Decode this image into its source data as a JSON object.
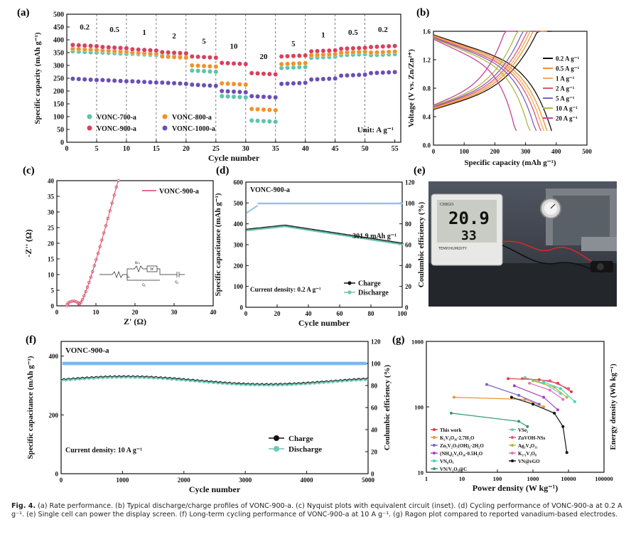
{
  "panels": {
    "a": "(a)",
    "b": "(b)",
    "c": "(c)",
    "d": "(d)",
    "e": "(e)",
    "f": "(f)",
    "g": "(g)"
  },
  "caption": {
    "fig": "Fig. 4.",
    "text": "(a) Rate performance. (b) Typical discharge/charge profiles of VONC-900-a. (c) Nyquist plots with equivalent circuit (inset). (d) Cycling performance of VONC-900-a at 0.2 A g⁻¹. (e) Single cell can power the display screen. (f) Long-term cycling performance of VONC-900-a at 10 A g⁻¹. (g) Ragon plot compared to reported vanadium-based electrodes."
  },
  "photo": {
    "brand": "CHIGO",
    "temp": "20.9",
    "hum": "33",
    "label": "TEMP/HUMIDITY"
  },
  "chart_data": [
    {
      "id": "a",
      "type": "scatter",
      "title": "",
      "xlabel": "Cycle number",
      "ylabel": "Specific capacity (mAh g⁻¹)",
      "xlim": [
        0,
        56
      ],
      "ylim": [
        0,
        500
      ],
      "xticks": [
        0,
        5,
        10,
        15,
        20,
        25,
        30,
        35,
        40,
        45,
        50,
        55
      ],
      "yticks": [
        0,
        50,
        100,
        150,
        200,
        250,
        300,
        350,
        400,
        450,
        500
      ],
      "rate_labels": [
        {
          "x": 3,
          "y": 440,
          "t": "0.2"
        },
        {
          "x": 8,
          "y": 430,
          "t": "0.5"
        },
        {
          "x": 13,
          "y": 420,
          "t": "1"
        },
        {
          "x": 18,
          "y": 405,
          "t": "2"
        },
        {
          "x": 23,
          "y": 385,
          "t": "5"
        },
        {
          "x": 28,
          "y": 365,
          "t": "10"
        },
        {
          "x": 33,
          "y": 325,
          "t": "20"
        },
        {
          "x": 38,
          "y": 375,
          "t": "5"
        },
        {
          "x": 43,
          "y": 410,
          "t": "1"
        },
        {
          "x": 48,
          "y": 420,
          "t": "0.5"
        },
        {
          "x": 53,
          "y": 430,
          "t": "0.2"
        }
      ],
      "unit": "Unit: A g⁻¹",
      "series": [
        {
          "name": "VONC-700-a",
          "color": "#5cc5a8",
          "levels": [
            355,
            350,
            345,
            340,
            280,
            180,
            85,
            290,
            330,
            340,
            340
          ]
        },
        {
          "name": "VONC-800-a",
          "color": "#f0922c",
          "levels": [
            365,
            358,
            350,
            335,
            300,
            230,
            130,
            305,
            340,
            350,
            350
          ]
        },
        {
          "name": "VONC-900-a",
          "color": "#d8415d",
          "levels": [
            380,
            372,
            363,
            352,
            335,
            310,
            270,
            335,
            355,
            365,
            372
          ]
        },
        {
          "name": "VONC-1000-a",
          "color": "#6a4fb6",
          "levels": [
            248,
            243,
            238,
            233,
            225,
            200,
            180,
            228,
            245,
            260,
            270
          ]
        }
      ]
    },
    {
      "id": "b",
      "type": "line",
      "xlabel": "Specific capacity (mAh g⁻¹)",
      "ylabel": "Voltage (V vs. Zn/Zn²⁺)",
      "xlim": [
        0,
        500
      ],
      "ylim": [
        0,
        1.6
      ],
      "xticks": [
        0,
        100,
        200,
        300,
        400,
        500
      ],
      "yticks": [
        0.0,
        0.4,
        0.8,
        1.2,
        1.6
      ],
      "series": [
        {
          "name": "0.2 A g⁻¹",
          "color": "#111111",
          "cap": 385
        },
        {
          "name": "0.5 A g⁻¹",
          "color": "#f0922c",
          "cap": 370
        },
        {
          "name": "1 A g⁻¹",
          "color": "#f5a962",
          "cap": 360
        },
        {
          "name": "2 A g⁻¹",
          "color": "#e0566a",
          "cap": 350
        },
        {
          "name": "5 A g⁻¹",
          "color": "#7a62c2",
          "cap": 335
        },
        {
          "name": "10 A g⁻¹",
          "color": "#b2b83a",
          "cap": 315
        },
        {
          "name": "20 A g⁻¹",
          "color": "#c9419e",
          "cap": 270
        }
      ]
    },
    {
      "id": "c",
      "type": "line",
      "xlabel": "Z' (Ω)",
      "ylabel": "-Z'' (Ω)",
      "xlim": [
        0,
        40
      ],
      "ylim": [
        0,
        40
      ],
      "xticks": [
        0,
        10,
        20,
        30,
        40
      ],
      "yticks": [
        0,
        5,
        10,
        15,
        20,
        25,
        30,
        35,
        40
      ],
      "legend": "VONC-900-a",
      "color": "#d8415d",
      "circuit": {
        "rs": "Rₛ",
        "rct": "Rᴄₜ",
        "w": "W",
        "q1": "Q₁",
        "q2": "Q₂"
      }
    },
    {
      "id": "d",
      "type": "scatter",
      "title": "VONC-900-a",
      "annotation": "301.9 mAh g⁻¹",
      "density": "Current density: 0.2 A g⁻¹",
      "xlabel": "Cycle number",
      "ylabel": "Specific capacitance (mAh g⁻¹)",
      "y2label": "Coulumbic efficiency (%)",
      "xlim": [
        0,
        100
      ],
      "ylim": [
        0,
        600
      ],
      "y2lim": [
        0,
        120
      ],
      "xticks": [
        0,
        20,
        40,
        60,
        80,
        100
      ],
      "yticks": [
        0,
        100,
        200,
        300,
        400,
        500,
        600
      ],
      "y2ticks": [
        0,
        20,
        40,
        60,
        80,
        100,
        120
      ],
      "series": [
        {
          "name": "Charge",
          "color": "#111111"
        },
        {
          "name": "Discharge",
          "color": "#6fc7b4"
        }
      ]
    },
    {
      "id": "f",
      "type": "scatter",
      "title": "VONC-900-a",
      "density": "Current density: 10 A g⁻¹",
      "xlabel": "Cycle number",
      "ylabel": "Specific capacitance (mAh g⁻¹)",
      "y2label": "Coulumbic efficiency (%)",
      "xlim": [
        0,
        5000
      ],
      "ylim": [
        0,
        450
      ],
      "y2lim": [
        0,
        120
      ],
      "xticks": [
        0,
        1000,
        2000,
        3000,
        4000,
        5000
      ],
      "yticks": [
        0,
        200,
        400
      ],
      "y2ticks": [
        0,
        20,
        40,
        60,
        80,
        100,
        120
      ],
      "series": [
        {
          "name": "Charge",
          "color": "#111111"
        },
        {
          "name": "Discharge",
          "color": "#6fc7b4"
        }
      ]
    },
    {
      "id": "g",
      "type": "line",
      "xlabel": "Power density (W kg⁻¹)",
      "ylabel": "Energy density (Wh kg⁻¹)",
      "xticks": [
        "1",
        "10",
        "100",
        "1000",
        "10000",
        "100000"
      ],
      "yticks": [
        "10",
        "100",
        "1000"
      ],
      "series": [
        {
          "name": "This work",
          "color": "#e8383d"
        },
        {
          "name": "VSe₂",
          "color": "#6fc7b4"
        },
        {
          "name": "K₂V₆O₁₆·2.7H₂O",
          "color": "#f0922c"
        },
        {
          "name": "ZnVOH-NSs",
          "color": "#e0566a"
        },
        {
          "name": "Zn₃V₂O₇(OH)₂·2H₂O",
          "color": "#7a62c2"
        },
        {
          "name": "Ag₂V₄O₁₁",
          "color": "#b2b83a"
        },
        {
          "name": "(NH₄)₂V₆O₁₆·0.5H₂O",
          "color": "#a63fc0"
        },
        {
          "name": "K₁.₁V₃O₈",
          "color": "#e06fb8"
        },
        {
          "name": "VN₀Oᵧ",
          "color": "#40d4c4"
        },
        {
          "name": "VN@rGO",
          "color": "#111111"
        },
        {
          "name": "VN/V₂O₃@C",
          "color": "#2f9b6a"
        }
      ]
    }
  ]
}
